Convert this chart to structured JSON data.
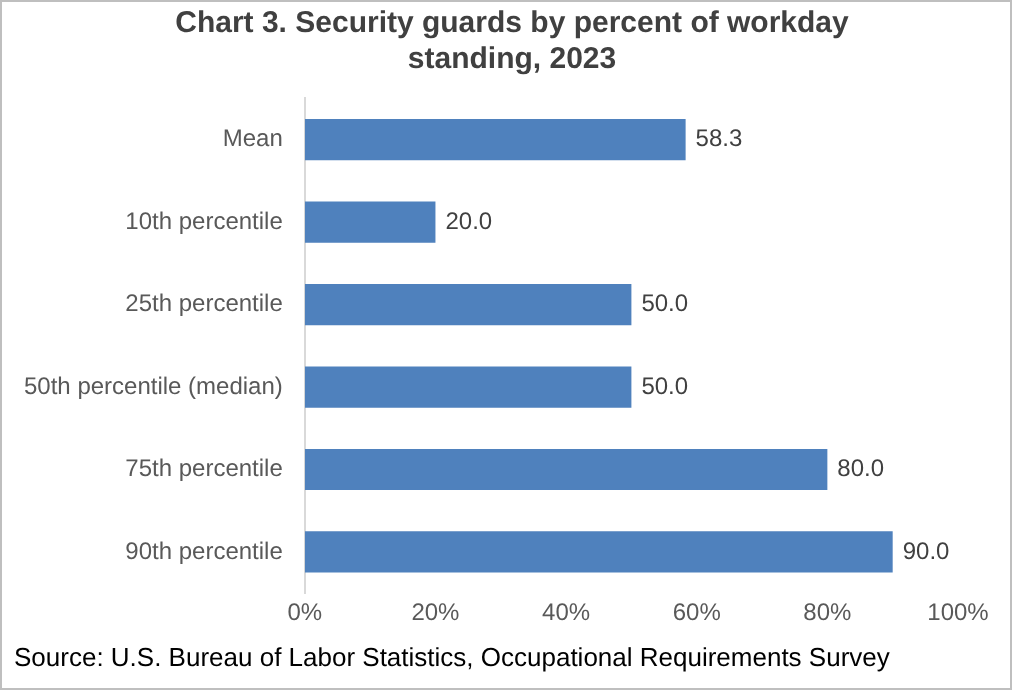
{
  "chart_data": {
    "type": "bar",
    "orientation": "horizontal",
    "title": "Chart 3. Security guards by percent of workday standing, 2023",
    "categories": [
      "Mean",
      "10th percentile",
      "25th percentile",
      "50th percentile (median)",
      "75th percentile",
      "90th percentile"
    ],
    "values": [
      58.3,
      20.0,
      50.0,
      50.0,
      80.0,
      90.0
    ],
    "value_labels": [
      "58.3",
      "20.0",
      "50.0",
      "50.0",
      "80.0",
      "90.0"
    ],
    "color": "#4f81bd",
    "xlim": [
      0,
      100
    ],
    "xticks": [
      {
        "value": 0,
        "label": "0%"
      },
      {
        "value": 20,
        "label": "20%"
      },
      {
        "value": 40,
        "label": "40%"
      },
      {
        "value": 60,
        "label": "60%"
      },
      {
        "value": 80,
        "label": "80%"
      },
      {
        "value": 100,
        "label": "100%"
      }
    ],
    "annotations": [
      "Source: U.S. Bureau of Labor Statistics, Occupational Requirements Survey"
    ]
  }
}
